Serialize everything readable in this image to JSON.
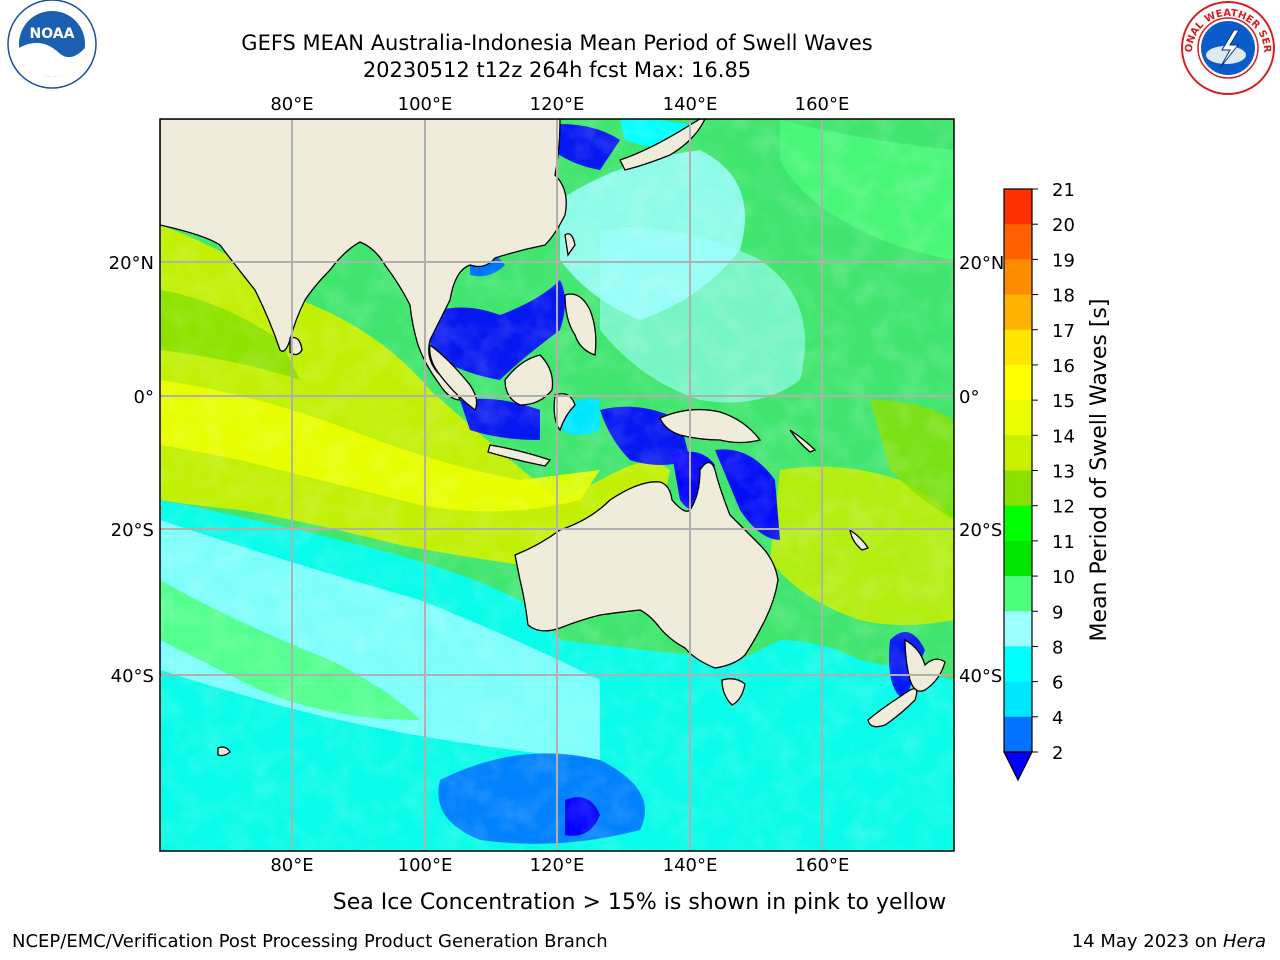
{
  "title": {
    "line1": "GEFS MEAN Australia-Indonesia Mean Period of Swell Waves",
    "line2": "20230512 t12z 264h fcst   Max: 16.85"
  },
  "map": {
    "lon_ticks_top": [
      "80°E",
      "100°E",
      "120°E",
      "140°E",
      "160°E"
    ],
    "lon_ticks_bottom": [
      "80°E",
      "100°E",
      "120°E",
      "140°E",
      "160°E"
    ],
    "lat_ticks_left": [
      "20°N",
      "0°",
      "20°S",
      "40°S"
    ],
    "lat_ticks_right": [
      "20°N",
      "0°",
      "20°S",
      "40°S"
    ],
    "ocean_base_color": "#3fe56d",
    "land_color": "#efecdc",
    "grid_color": "#b0b0b0"
  },
  "colorbar": {
    "label": "Mean Period of Swell Waves [s]",
    "ticks": [
      "2",
      "4",
      "6",
      "8",
      "9",
      "10",
      "11",
      "12",
      "13",
      "14",
      "15",
      "16",
      "17",
      "18",
      "19",
      "20",
      "21"
    ],
    "colors": [
      "#0073ff",
      "#00e6ff",
      "#00ffff",
      "#9cffff",
      "#4cff7c",
      "#00e600",
      "#00ff00",
      "#8ae000",
      "#c8f000",
      "#ebff00",
      "#ffff00",
      "#ffe600",
      "#ffb300",
      "#ff8c00",
      "#ff6000",
      "#ff3000"
    ],
    "under_color": "#0000ff"
  },
  "caption": "Sea Ice Concentration > 15% is shown in pink to yellow",
  "footer": {
    "left": "NCEP/EMC/Verification Post Processing Product Generation Branch",
    "right_prefix": "14 May 2023 on ",
    "right_italic": "Hera"
  },
  "logos": {
    "left_icon": "noaa-logo-icon",
    "right_icon": "nws-logo-icon",
    "left_text": "NOAA",
    "right_text": "NATIONAL WEATHER SERVICE"
  }
}
